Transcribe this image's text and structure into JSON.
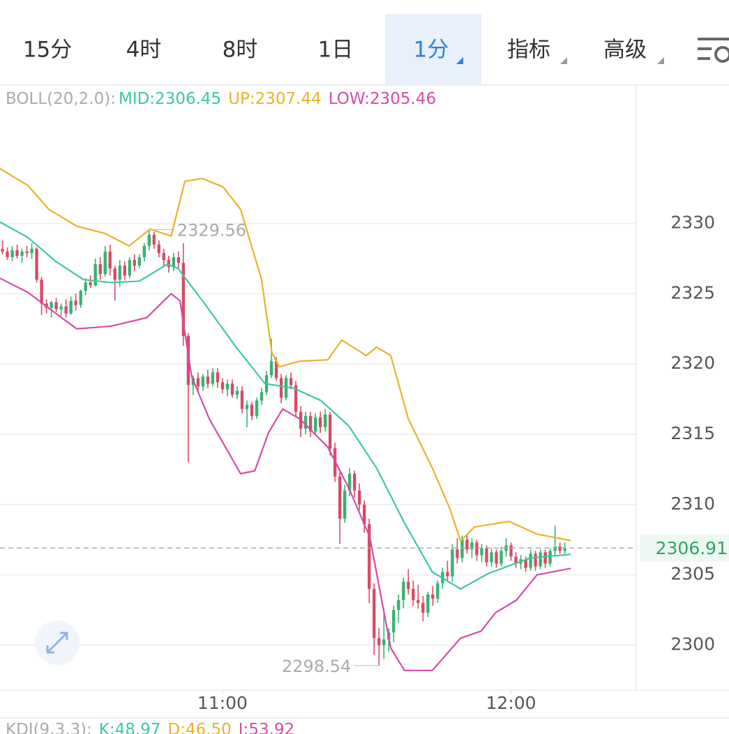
{
  "tabs": [
    "15分",
    "4时",
    "8时",
    "1日",
    "1分",
    "指标",
    "高级"
  ],
  "chart_data": {
    "type": "candlestick",
    "indicator": "BOLL(20,2.0):",
    "up_color": "#35b36f",
    "down_color": "#d84a64",
    "last_price_color": "#2ea463",
    "grid": true,
    "xlim": [
      -0.5,
      129.6
    ],
    "ylim": [
      2296.8,
      2339.7
    ],
    "yticks": [
      2300,
      2305,
      2310,
      2315,
      2320,
      2325,
      2330
    ],
    "xticks": [
      {
        "value": 45,
        "label": "11:00"
      },
      {
        "value": 104,
        "label": "12:00"
      }
    ],
    "candles": [
      [
        2328.2,
        2328.8,
        2327.8,
        2328.0
      ],
      [
        2328.0,
        2328.3,
        2327.4,
        2327.6
      ],
      [
        2327.6,
        2328.4,
        2327.3,
        2328.1
      ],
      [
        2328.1,
        2328.5,
        2327.5,
        2327.7
      ],
      [
        2327.7,
        2328.2,
        2327.2,
        2328.0
      ],
      [
        2328.0,
        2328.4,
        2327.6,
        2327.9
      ],
      [
        2327.9,
        2328.6,
        2327.5,
        2328.2
      ],
      [
        2328.2,
        2328.3,
        2325.8,
        2326.0
      ],
      [
        2326.0,
        2326.2,
        2323.5,
        2324.3
      ],
      [
        2324.3,
        2324.6,
        2323.6,
        2324.0
      ],
      [
        2324.0,
        2324.5,
        2323.3,
        2324.4
      ],
      [
        2324.4,
        2324.7,
        2323.7,
        2323.9
      ],
      [
        2323.9,
        2324.3,
        2323.4,
        2324.1
      ],
      [
        2324.1,
        2324.6,
        2323.3,
        2323.6
      ],
      [
        2323.6,
        2324.8,
        2323.5,
        2324.5
      ],
      [
        2324.5,
        2325.0,
        2323.8,
        2324.2
      ],
      [
        2324.2,
        2325.3,
        2324.0,
        2325.2
      ],
      [
        2325.2,
        2326.1,
        2324.9,
        2325.8
      ],
      [
        2325.8,
        2326.3,
        2325.4,
        2325.6
      ],
      [
        2325.6,
        2327.5,
        2325.5,
        2327.1
      ],
      [
        2327.1,
        2327.6,
        2326.0,
        2326.4
      ],
      [
        2326.4,
        2328.4,
        2326.2,
        2328.0
      ],
      [
        2328.0,
        2328.5,
        2326.3,
        2326.8
      ],
      [
        2326.8,
        2327.0,
        2324.5,
        2326.0
      ],
      [
        2326.0,
        2327.4,
        2325.5,
        2327.0
      ],
      [
        2327.0,
        2327.3,
        2326.0,
        2326.3
      ],
      [
        2326.3,
        2327.6,
        2326.1,
        2327.4
      ],
      [
        2327.4,
        2327.8,
        2326.6,
        2327.0
      ],
      [
        2327.0,
        2327.8,
        2326.8,
        2327.6
      ],
      [
        2327.6,
        2328.6,
        2327.3,
        2328.4
      ],
      [
        2328.4,
        2329.56,
        2328.1,
        2329.2
      ],
      [
        2329.2,
        2329.4,
        2328.2,
        2328.5
      ],
      [
        2328.5,
        2328.8,
        2327.6,
        2327.9
      ],
      [
        2327.9,
        2328.2,
        2327.0,
        2327.4
      ],
      [
        2327.4,
        2327.7,
        2326.5,
        2326.9
      ],
      [
        2326.9,
        2327.9,
        2326.6,
        2327.6
      ],
      [
        2327.6,
        2328.0,
        2326.8,
        2327.2
      ],
      [
        2327.2,
        2328.6,
        2321.3,
        2322.0
      ],
      [
        2322.0,
        2322.2,
        2313.0,
        2318.5
      ],
      [
        2318.5,
        2319.2,
        2317.8,
        2319.0
      ],
      [
        2319.0,
        2319.4,
        2318.0,
        2318.4
      ],
      [
        2318.4,
        2319.3,
        2318.1,
        2319.1
      ],
      [
        2319.1,
        2319.6,
        2318.3,
        2318.6
      ],
      [
        2318.6,
        2319.7,
        2318.4,
        2319.4
      ],
      [
        2319.4,
        2319.7,
        2318.3,
        2318.7
      ],
      [
        2318.7,
        2319.0,
        2317.9,
        2318.2
      ],
      [
        2318.2,
        2318.9,
        2317.7,
        2318.6
      ],
      [
        2318.6,
        2318.9,
        2317.6,
        2317.8
      ],
      [
        2317.8,
        2318.4,
        2317.5,
        2318.1
      ],
      [
        2318.1,
        2318.4,
        2316.5,
        2316.8
      ],
      [
        2316.8,
        2317.4,
        2315.5,
        2317.1
      ],
      [
        2317.1,
        2317.3,
        2316.0,
        2316.3
      ],
      [
        2316.3,
        2317.6,
        2316.1,
        2317.4
      ],
      [
        2317.4,
        2318.3,
        2317.1,
        2318.0
      ],
      [
        2318.0,
        2319.5,
        2317.8,
        2319.2
      ],
      [
        2319.2,
        2321.8,
        2319.0,
        2320.2
      ],
      [
        2320.2,
        2320.5,
        2318.8,
        2319.0
      ],
      [
        2319.0,
        2319.3,
        2317.2,
        2317.6
      ],
      [
        2317.6,
        2319.2,
        2317.4,
        2319.0
      ],
      [
        2319.0,
        2319.4,
        2318.2,
        2318.5
      ],
      [
        2318.5,
        2318.8,
        2316.2,
        2316.6
      ],
      [
        2316.6,
        2317.0,
        2314.8,
        2315.4
      ],
      [
        2315.4,
        2316.6,
        2315.0,
        2316.3
      ],
      [
        2316.3,
        2316.6,
        2314.8,
        2315.2
      ],
      [
        2315.2,
        2316.5,
        2315.0,
        2316.2
      ],
      [
        2316.2,
        2316.6,
        2315.1,
        2315.5
      ],
      [
        2315.5,
        2316.8,
        2315.2,
        2316.4
      ],
      [
        2316.4,
        2316.6,
        2313.5,
        2314.0
      ],
      [
        2314.0,
        2314.4,
        2311.6,
        2312.0
      ],
      [
        2312.0,
        2312.3,
        2307.2,
        2309.0
      ],
      [
        2309.0,
        2311.4,
        2308.7,
        2311.0
      ],
      [
        2311.0,
        2312.6,
        2310.6,
        2312.2
      ],
      [
        2312.2,
        2312.4,
        2310.5,
        2311.0
      ],
      [
        2311.0,
        2311.5,
        2309.6,
        2310.0
      ],
      [
        2310.0,
        2310.3,
        2308.0,
        2308.6
      ],
      [
        2308.6,
        2309.0,
        2303.0,
        2304.0
      ],
      [
        2304.0,
        2304.4,
        2299.3,
        2300.5
      ],
      [
        2300.5,
        2301.2,
        2298.54,
        2300.0
      ],
      [
        2300.0,
        2302.6,
        2299.0,
        2300.4
      ],
      [
        2300.4,
        2301.2,
        2299.5,
        2300.9
      ],
      [
        2300.9,
        2302.8,
        2300.2,
        2302.5
      ],
      [
        2302.5,
        2303.6,
        2301.6,
        2303.2
      ],
      [
        2303.2,
        2304.8,
        2302.6,
        2304.5
      ],
      [
        2304.5,
        2305.4,
        2303.6,
        2304.0
      ],
      [
        2304.0,
        2304.6,
        2302.8,
        2303.2
      ],
      [
        2303.2,
        2304.3,
        2302.6,
        2303.0
      ],
      [
        2303.0,
        2303.5,
        2301.7,
        2302.3
      ],
      [
        2302.3,
        2303.8,
        2302.0,
        2303.6
      ],
      [
        2303.6,
        2304.2,
        2302.8,
        2303.3
      ],
      [
        2303.3,
        2304.6,
        2303.0,
        2304.4
      ],
      [
        2304.4,
        2305.5,
        2304.0,
        2305.2
      ],
      [
        2305.2,
        2306.0,
        2304.6,
        2304.9
      ],
      [
        2304.9,
        2307.2,
        2304.5,
        2306.8
      ],
      [
        2306.8,
        2307.6,
        2305.8,
        2306.2
      ],
      [
        2306.2,
        2307.8,
        2305.9,
        2307.5
      ],
      [
        2307.5,
        2307.9,
        2306.5,
        2306.8
      ],
      [
        2306.8,
        2307.6,
        2306.2,
        2307.3
      ],
      [
        2307.3,
        2307.5,
        2306.0,
        2306.4
      ],
      [
        2306.4,
        2307.2,
        2305.9,
        2306.9
      ],
      [
        2306.9,
        2307.1,
        2305.6,
        2305.9
      ],
      [
        2305.9,
        2306.9,
        2305.6,
        2306.6
      ],
      [
        2306.6,
        2306.8,
        2305.5,
        2305.8
      ],
      [
        2305.8,
        2307.0,
        2305.6,
        2306.7
      ],
      [
        2306.7,
        2307.6,
        2306.3,
        2307.1
      ],
      [
        2307.1,
        2307.3,
        2306.0,
        2306.3
      ],
      [
        2306.3,
        2306.6,
        2305.5,
        2305.8
      ],
      [
        2305.8,
        2306.4,
        2305.4,
        2306.1
      ],
      [
        2306.1,
        2306.3,
        2305.2,
        2305.5
      ],
      [
        2305.5,
        2306.8,
        2305.3,
        2306.5
      ],
      [
        2306.5,
        2306.7,
        2305.3,
        2305.6
      ],
      [
        2305.6,
        2306.8,
        2305.4,
        2306.6
      ],
      [
        2306.6,
        2306.8,
        2305.5,
        2305.8
      ],
      [
        2305.8,
        2306.9,
        2305.6,
        2306.7
      ],
      [
        2306.7,
        2308.5,
        2306.4,
        2307.0
      ],
      [
        2307.0,
        2307.3,
        2306.5,
        2306.7
      ],
      [
        2306.7,
        2307.3,
        2306.4,
        2306.91
      ]
    ],
    "bands": [
      {
        "name": "MID:",
        "color": "#3cc7a6",
        "x": [
          -0.5,
          5.2,
          10.9,
          16.6,
          22.3,
          28.0,
          33.7,
          35.9,
          40.9,
          48.0,
          53.7,
          59.4,
          65.1,
          70.8,
          76.5,
          82.2,
          87.9,
          93.7,
          99.4,
          107.9,
          116.2
        ],
        "values": [
          2330.1,
          2329.0,
          2327.3,
          2326.0,
          2325.8,
          2325.9,
          2327.1,
          2326.8,
          2324.5,
          2321.1,
          2318.6,
          2318.3,
          2317.4,
          2315.6,
          2312.6,
          2308.7,
          2305.2,
          2304.0,
          2305.1,
          2306.2,
          2306.45
        ]
      },
      {
        "name": "UP:",
        "color": "#e8b32a",
        "x": [
          -0.5,
          5.2,
          9.5,
          15.2,
          20.9,
          25.9,
          30.2,
          34.5,
          37.3,
          40.9,
          45.1,
          48.7,
          53.0,
          55.1,
          56.6,
          60.8,
          66.5,
          69.4,
          74.4,
          76.5,
          79.4,
          83.0,
          87.9,
          91.5,
          93.7,
          96.5,
          103.6,
          109.3,
          116.2
        ],
        "values": [
          2333.9,
          2332.7,
          2331.0,
          2329.8,
          2329.3,
          2328.4,
          2329.6,
          2329.1,
          2333.0,
          2333.2,
          2332.6,
          2331.0,
          2326.0,
          2320.8,
          2319.8,
          2320.2,
          2320.3,
          2321.7,
          2320.6,
          2321.2,
          2320.6,
          2316.1,
          2312.6,
          2309.7,
          2307.4,
          2308.4,
          2308.8,
          2307.9,
          2307.44
        ]
      },
      {
        "name": "LOW:",
        "color": "#d64aa8",
        "x": [
          -0.5,
          5.2,
          10.9,
          15.2,
          22.3,
          29.5,
          34.5,
          36.3,
          38.7,
          42.3,
          48.7,
          51.6,
          54.4,
          57.3,
          60.8,
          66.5,
          70.8,
          75.1,
          79.4,
          82.2,
          87.9,
          93.7,
          97.9,
          100.8,
          105.1,
          109.3,
          116.2
        ],
        "values": [
          2326.1,
          2325.1,
          2323.6,
          2322.5,
          2322.7,
          2323.3,
          2325.0,
          2324.5,
          2319.1,
          2316.1,
          2312.2,
          2312.4,
          2315.1,
          2316.8,
          2316.1,
          2314.1,
          2311.2,
          2307.7,
          2299.8,
          2298.2,
          2298.2,
          2300.5,
          2301.0,
          2302.3,
          2303.2,
          2305.0,
          2305.46
        ]
      }
    ]
  },
  "kdj": {
    "title": "KDJ(9,3,3):",
    "items": [
      {
        "text": "K:48.97",
        "color": "#3cc7a6"
      },
      {
        "text": "D:46.50",
        "color": "#e8b32a"
      },
      {
        "text": "J:53.92",
        "color": "#d64aa8"
      }
    ]
  }
}
